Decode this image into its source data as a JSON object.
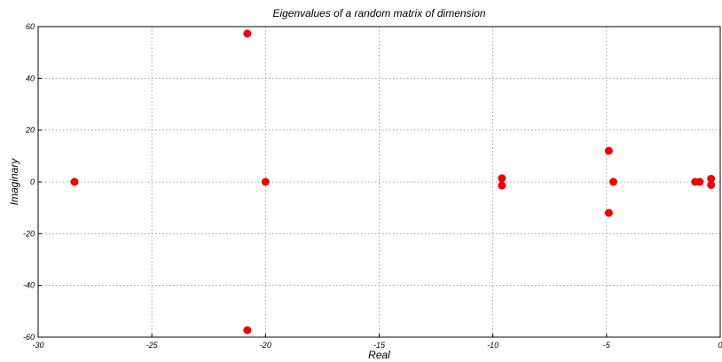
{
  "chart_data": {
    "type": "scatter",
    "title": "Eigenvalues of a random matrix of dimension",
    "xlabel": "Real",
    "ylabel": "Imaginary",
    "xlim": [
      -30,
      0
    ],
    "ylim": [
      -60,
      60
    ],
    "xticks": [
      -30,
      -25,
      -20,
      -15,
      -10,
      -5,
      0
    ],
    "yticks": [
      -60,
      -40,
      -20,
      0,
      20,
      40,
      60
    ],
    "grid": true,
    "marker_color": "#ee0000",
    "series": [
      {
        "points": [
          {
            "x": -28.4,
            "y": 0
          },
          {
            "x": -20.8,
            "y": 57.3
          },
          {
            "x": -20.8,
            "y": -57.3
          },
          {
            "x": -20.0,
            "y": 0
          },
          {
            "x": -9.6,
            "y": 1.4
          },
          {
            "x": -9.6,
            "y": -1.4
          },
          {
            "x": -4.9,
            "y": 12.0
          },
          {
            "x": -4.9,
            "y": -12.0
          },
          {
            "x": -4.7,
            "y": 0
          },
          {
            "x": -1.1,
            "y": 0
          },
          {
            "x": -0.9,
            "y": 0
          },
          {
            "x": -0.4,
            "y": 1.2
          },
          {
            "x": -0.4,
            "y": -1.2
          }
        ]
      }
    ]
  }
}
